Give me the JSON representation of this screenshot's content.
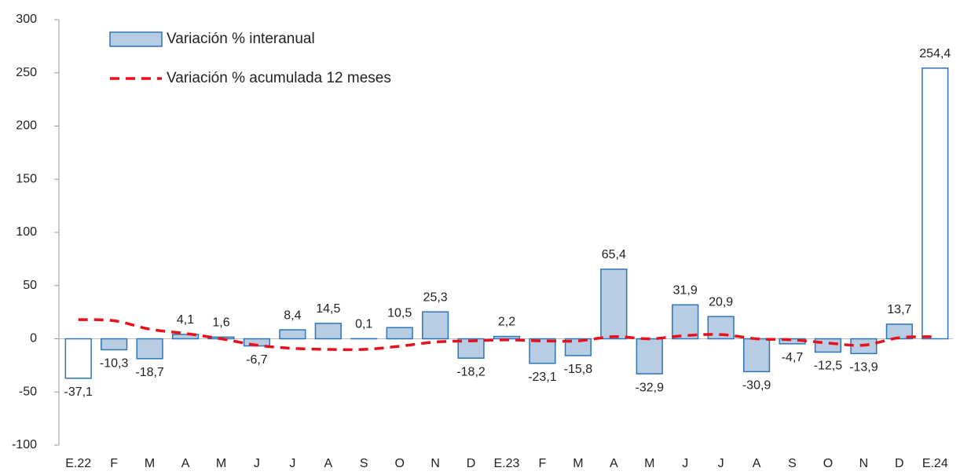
{
  "chart_data": {
    "type": "bar",
    "categories": [
      "E.22",
      "F",
      "M",
      "A",
      "M",
      "J",
      "J",
      "A",
      "S",
      "O",
      "N",
      "D",
      "E.23",
      "F",
      "M",
      "A",
      "M",
      "J",
      "J",
      "A",
      "S",
      "O",
      "N",
      "D",
      "E.24"
    ],
    "series": [
      {
        "name": "Variación % interanual",
        "type": "bar",
        "color": "#b8cce4",
        "edge_color": "#2e75b6",
        "colors": [
          "#ffffff",
          "#b8cce4",
          "#b8cce4",
          "#b8cce4",
          "#b8cce4",
          "#b8cce4",
          "#b8cce4",
          "#b8cce4",
          "#b8cce4",
          "#b8cce4",
          "#b8cce4",
          "#b8cce4",
          "#b8cce4",
          "#b8cce4",
          "#b8cce4",
          "#b8cce4",
          "#b8cce4",
          "#b8cce4",
          "#b8cce4",
          "#b8cce4",
          "#b8cce4",
          "#b8cce4",
          "#b8cce4",
          "#b8cce4",
          "#ffffff"
        ],
        "values": [
          -37.1,
          -10.3,
          -18.7,
          4.1,
          1.6,
          -6.7,
          8.4,
          14.5,
          0.1,
          10.5,
          25.3,
          -18.2,
          2.2,
          -23.1,
          -15.8,
          65.4,
          -32.9,
          31.9,
          20.9,
          -30.9,
          -4.7,
          -12.5,
          -13.9,
          13.7,
          254.4
        ],
        "value_labels": [
          "-37,1",
          "-10,3",
          "-18,7",
          "4,1",
          "1,6",
          "-6,7",
          "8,4",
          "14,5",
          "0,1",
          "10,5",
          "25,3",
          "-18,2",
          "2,2",
          "-23,1",
          "-15,8",
          "65,4",
          "-32,9",
          "31,9",
          "20,9",
          "-30,9",
          "-4,7",
          "-12,5",
          "-13,9",
          "13,7",
          "254,4"
        ]
      },
      {
        "name": "Variación % acumulada 12 meses",
        "type": "line",
        "color": "#e8101a",
        "dashed": true,
        "values": [
          18,
          17,
          9,
          5,
          0,
          -6,
          -9,
          -10,
          -10,
          -7,
          -3,
          -2,
          -1,
          -2,
          -2,
          2,
          0,
          3,
          4,
          0,
          -1,
          -4,
          -6,
          1,
          2
        ]
      }
    ],
    "ylim": [
      -100,
      300
    ],
    "yticks": [
      -100,
      -50,
      0,
      50,
      100,
      150,
      200,
      250,
      300
    ]
  }
}
